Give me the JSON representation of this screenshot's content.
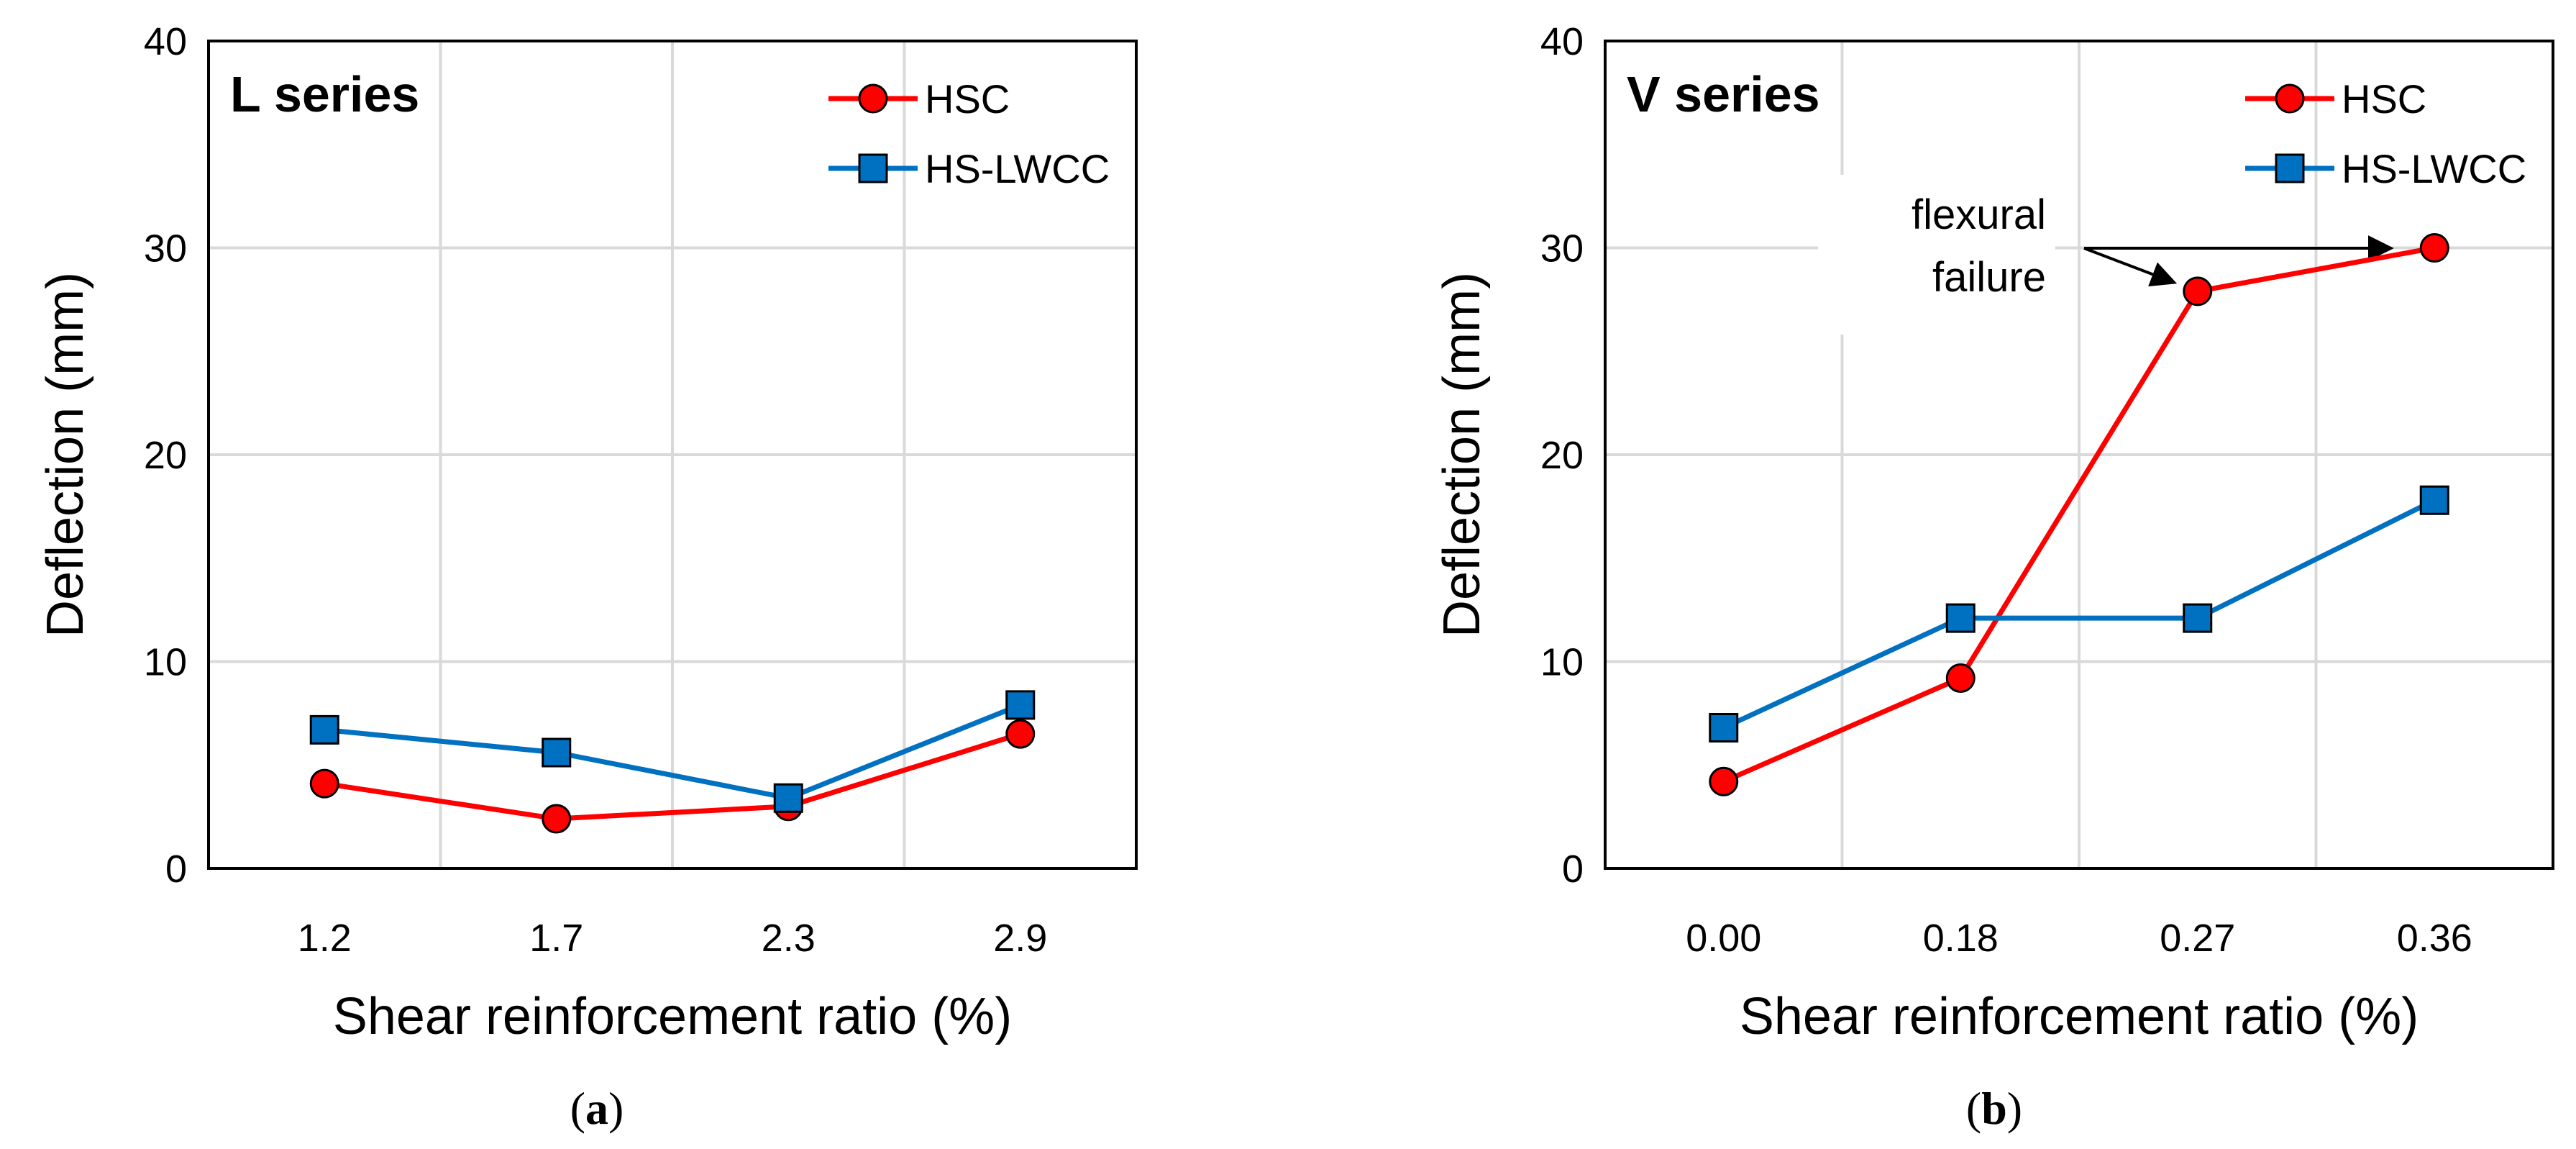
{
  "chart_data": [
    {
      "type": "line",
      "panel_title": "L series",
      "caption": "a",
      "xlabel": "Shear reinforcement ratio (%)",
      "ylabel": "Deflection (mm)",
      "categories": [
        "1.2",
        "1.7",
        "2.3",
        "2.9"
      ],
      "ylim": [
        0,
        40
      ],
      "yticks": [
        0,
        10,
        20,
        30,
        40
      ],
      "grid": true,
      "legend_position": "top-right",
      "series": [
        {
          "name": "HSC",
          "color": "#ff0000",
          "marker": "circle",
          "values": [
            4.1,
            2.4,
            3.0,
            6.5
          ]
        },
        {
          "name": "HS-LWCC",
          "color": "#0070c0",
          "marker": "square",
          "values": [
            6.7,
            5.6,
            3.4,
            7.9
          ]
        }
      ]
    },
    {
      "type": "line",
      "panel_title": "V series",
      "caption": "b",
      "xlabel": "Shear reinforcement ratio (%)",
      "ylabel": "Deflection (mm)",
      "categories": [
        "0.00",
        "0.18",
        "0.27",
        "0.36"
      ],
      "ylim": [
        0,
        40
      ],
      "yticks": [
        0,
        10,
        20,
        30,
        40
      ],
      "grid": true,
      "legend_position": "top-right",
      "series": [
        {
          "name": "HSC",
          "color": "#ff0000",
          "marker": "circle",
          "values": [
            4.2,
            9.2,
            27.9,
            30.0
          ]
        },
        {
          "name": "HS-LWCC",
          "color": "#0070c0",
          "marker": "square",
          "values": [
            6.8,
            12.1,
            12.1,
            17.8
          ]
        }
      ],
      "annotation": {
        "lines": [
          "flexural",
          "failure"
        ],
        "targets": [
          2,
          3
        ]
      }
    }
  ]
}
